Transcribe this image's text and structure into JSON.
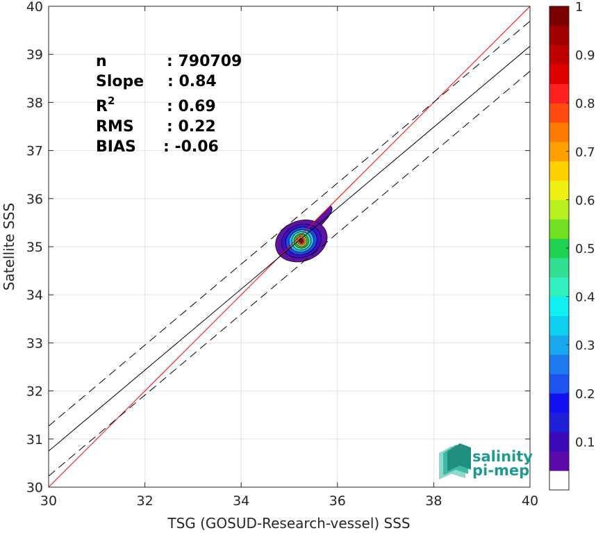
{
  "chart_data": {
    "type": "heatmap",
    "title": "",
    "xlabel": "TSG (GOSUD-Research-vessel) SSS",
    "ylabel": "Satellite SSS",
    "xlim": [
      30,
      40
    ],
    "ylim": [
      30,
      40
    ],
    "xticks": [
      30,
      32,
      34,
      36,
      38,
      40
    ],
    "yticks": [
      30,
      31,
      32,
      33,
      34,
      35,
      36,
      37,
      38,
      39,
      40
    ],
    "grid": true,
    "stats": [
      {
        "label": "n",
        "value": ": 790709"
      },
      {
        "label": "Slope",
        "value": ": 0.84"
      },
      {
        "label": "R",
        "superscript": "2",
        "value": ": 0.69"
      },
      {
        "label": "RMS",
        "value": ": 0.22"
      },
      {
        "label": "BIAS",
        "value": ": -0.06"
      }
    ],
    "lines": {
      "identity": {
        "x": [
          30,
          40
        ],
        "y": [
          30,
          40
        ],
        "color": "#ff0000"
      },
      "regression": {
        "x": [
          30,
          40
        ],
        "y": [
          30.75,
          39.17
        ],
        "color": "#000000"
      },
      "regression_upper": {
        "x": [
          30,
          40
        ],
        "y": [
          31.27,
          39.69
        ],
        "color": "#000000",
        "dashed": true
      },
      "regression_lower": {
        "x": [
          30,
          40
        ],
        "y": [
          30.23,
          38.65
        ],
        "color": "#000000",
        "dashed": true
      }
    },
    "density": {
      "center": [
        35.25,
        35.12
      ],
      "levels": [
        {
          "value": 0.05,
          "rx": 0.55,
          "ry": 0.42,
          "color": "#5e12a8"
        },
        {
          "value": 0.1,
          "rx": 0.42,
          "ry": 0.34,
          "color": "#3c0fd0"
        },
        {
          "value": 0.2,
          "rx": 0.33,
          "ry": 0.28,
          "color": "#1a4fe8"
        },
        {
          "value": 0.3,
          "rx": 0.26,
          "ry": 0.23,
          "color": "#22b6f2"
        },
        {
          "value": 0.4,
          "rx": 0.2,
          "ry": 0.19,
          "color": "#32e8c0"
        },
        {
          "value": 0.55,
          "rx": 0.15,
          "ry": 0.15,
          "color": "#3cd13c"
        },
        {
          "value": 0.65,
          "rx": 0.11,
          "ry": 0.12,
          "color": "#f0f020"
        },
        {
          "value": 0.75,
          "rx": 0.08,
          "ry": 0.09,
          "color": "#ff9a10"
        },
        {
          "value": 0.9,
          "rx": 0.05,
          "ry": 0.06,
          "color": "#e81010"
        },
        {
          "value": 1.0,
          "rx": 0.025,
          "ry": 0.03,
          "color": "#960000"
        }
      ]
    },
    "colorbar": {
      "ticks": [
        0.1,
        0.2,
        0.3,
        0.4,
        0.5,
        0.6,
        0.7,
        0.8,
        0.9,
        1
      ],
      "tick_labels": [
        "0.1",
        "0.2",
        "0.3",
        "0.4",
        "0.5",
        "0.6",
        "0.7",
        "0.8",
        "0.9",
        "1"
      ],
      "range": [
        0,
        1
      ],
      "colors": [
        "#ffffff",
        "#5a0aa8",
        "#3b0ab8",
        "#2020d8",
        "#1010f0",
        "#1e55f0",
        "#1e7bf0",
        "#18a8f0",
        "#10d0f0",
        "#10f0f0",
        "#30f0c0",
        "#30e090",
        "#20d050",
        "#70e020",
        "#b8f020",
        "#f0f010",
        "#ffd000",
        "#ffa000",
        "#ff7a00",
        "#ff4a10",
        "#ff2020",
        "#e00000",
        "#c00000",
        "#a00000",
        "#7d0000"
      ]
    }
  },
  "logo": {
    "line1": "salinity",
    "line2": "pi-mep"
  }
}
